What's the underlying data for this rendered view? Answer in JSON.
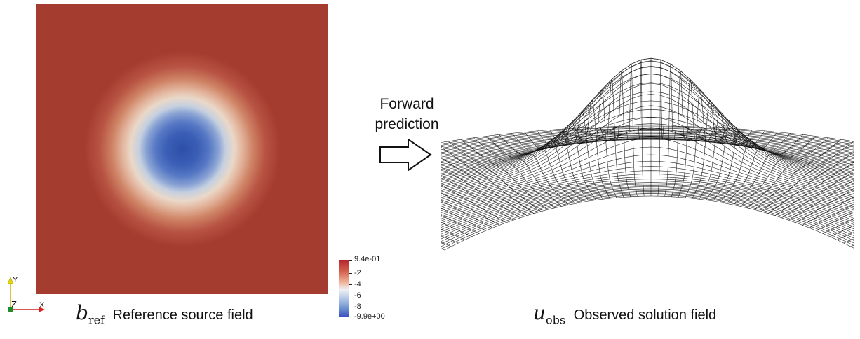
{
  "left": {
    "caption_symbol": "b",
    "caption_sub": "ref",
    "caption_text": "Reference source field",
    "colorbar": {
      "labels": [
        "9.4e-01",
        "-2",
        "-4",
        "-6",
        "-8",
        "-9.9e+00"
      ]
    },
    "axes": {
      "y": "Y",
      "z": "Z",
      "x": "X"
    }
  },
  "arrow": {
    "line1": "Forward",
    "line2": "prediction"
  },
  "right": {
    "caption_symbol": "u",
    "caption_sub": "obs",
    "caption_text": "Observed solution field"
  }
}
